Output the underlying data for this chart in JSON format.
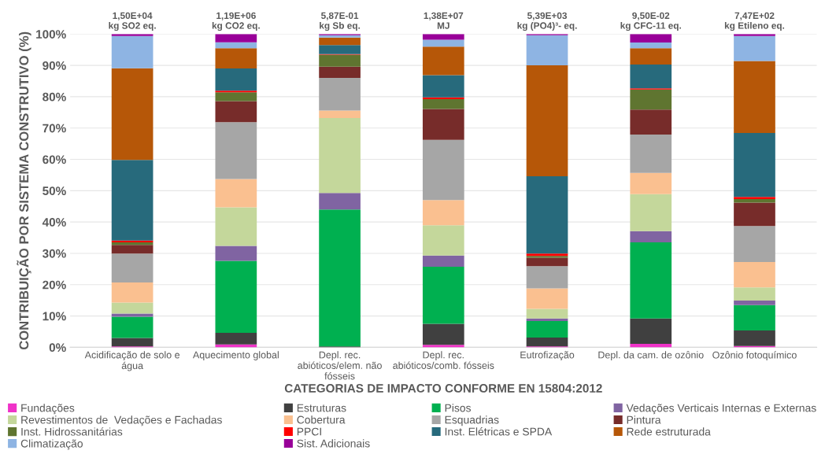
{
  "chart_data": {
    "type": "bar",
    "stacked": true,
    "xlabel": "CATEGORIAS DE IMPACTO CONFORME EN 15804:2012",
    "ylabel": "CONTRIBUIÇÃO POR SISTEMA CONSTRUTIVO (%)",
    "categories": [
      "Acidificação de solo e\nágua",
      "Aquecimento global",
      "Depl. rec.\nabióticos/elem. não\nfósseis",
      "Depl. rec.\nabióticos/comb. fósseis",
      "Eutrofização",
      "Depl. da cam. de ozônio",
      "Ozônio fotoquímico"
    ],
    "ylim": [
      0,
      100
    ],
    "yticks": [
      {
        "value": 0,
        "label": "0%"
      },
      {
        "value": 10,
        "label": "10%"
      },
      {
        "value": 20,
        "label": "20%"
      },
      {
        "value": 30,
        "label": "30%"
      },
      {
        "value": 40,
        "label": "40%"
      },
      {
        "value": 50,
        "label": "50%"
      },
      {
        "value": 60,
        "label": "60%"
      },
      {
        "value": 70,
        "label": "70%"
      },
      {
        "value": 80,
        "label": "80%"
      },
      {
        "value": 90,
        "label": "90%"
      },
      {
        "value": 100,
        "label": "100%"
      }
    ],
    "grid": "y",
    "legend": "bottom",
    "series": [
      {
        "name": "Fundações",
        "color": "#f032c8",
        "values": [
          0.3,
          0.9,
          0,
          0.8,
          0.3,
          1.1,
          0.4
        ]
      },
      {
        "name": "Estruturas",
        "color": "#404040",
        "values": [
          2.7,
          3.7,
          0.3,
          6.7,
          2.8,
          8.1,
          5.0
        ]
      },
      {
        "name": "Pisos",
        "color": "#00b050",
        "values": [
          6.8,
          23.0,
          43.7,
          18.2,
          5.3,
          24.3,
          8.1
        ]
      },
      {
        "name": "Vedações Verticais Internas e Externas",
        "color": "#8064a2",
        "values": [
          1.0,
          4.8,
          5.3,
          3.6,
          0.8,
          3.6,
          1.4
        ]
      },
      {
        "name": "Revestimentos de  Vedações e Fachadas",
        "color": "#c4d79b",
        "values": [
          3.5,
          12.3,
          23.9,
          9.7,
          3.1,
          11.8,
          4.2
        ]
      },
      {
        "name": "Cobertura",
        "color": "#fac090",
        "values": [
          6.4,
          9.0,
          2.4,
          8.0,
          6.5,
          6.8,
          8.1
        ]
      },
      {
        "name": "Esquadrias",
        "color": "#a6a6a6",
        "values": [
          9.2,
          18.2,
          10.4,
          19.2,
          7.1,
          12.2,
          11.5
        ]
      },
      {
        "name": "Pintura",
        "color": "#772c2a",
        "values": [
          2.8,
          6.7,
          3.6,
          9.9,
          2.7,
          8.0,
          7.5
        ]
      },
      {
        "name": "Inst. Hidrossanitárias",
        "color": "#5f7530",
        "values": [
          0.8,
          2.8,
          3.8,
          3.1,
          0.6,
          6.4,
          1.1
        ]
      },
      {
        "name": "PPCI",
        "color": "#ff0000",
        "values": [
          0.6,
          0.5,
          0.2,
          0.6,
          0.7,
          0.4,
          0.7
        ]
      },
      {
        "name": "Inst. Elétricas e SPDA",
        "color": "#276a7c",
        "values": [
          25.7,
          7.1,
          2.9,
          7.1,
          24.7,
          7.6,
          20.4
        ]
      },
      {
        "name": "Rede estruturada",
        "color": "#b65708",
        "values": [
          29.3,
          6.5,
          2.4,
          9.1,
          35.4,
          5.2,
          23.0
        ]
      },
      {
        "name": "Climatização",
        "color": "#8eb4e3",
        "values": [
          10.3,
          1.9,
          0.7,
          2.2,
          9.6,
          1.8,
          8.0
        ]
      },
      {
        "name": "Sist. Adicionais",
        "color": "#990099",
        "values": [
          0.6,
          2.6,
          0.4,
          1.8,
          0.4,
          2.7,
          0.6
        ]
      }
    ],
    "annotations": [
      {
        "text": "1,50E+04\nkg SO2 eq.",
        "x": "Acidificação de solo e\nágua",
        "y": 100
      },
      {
        "text": "1,19E+06\nkg CO2 eq.",
        "x": "Aquecimento global",
        "y": 100
      },
      {
        "text": "5,87E-01\nkg Sb eq.",
        "x": "Depl. rec.\nabióticos/elem. não\nfósseis",
        "y": 100
      },
      {
        "text": "1,38E+07\nMJ",
        "x": "Depl. rec.\nabióticos/comb. fósseis",
        "y": 100
      },
      {
        "text": "5,39E+03\nkg (PO4)³- eq.",
        "x": "Eutrofização",
        "y": 100
      },
      {
        "text": "9,50E-02\nkg CFC-11 eq.",
        "x": "Depl. da cam. de ozônio",
        "y": 100
      },
      {
        "text": "7,47E+02\nkg Etileno eq.",
        "x": "Ozônio fotoquímico",
        "y": 100
      }
    ]
  }
}
